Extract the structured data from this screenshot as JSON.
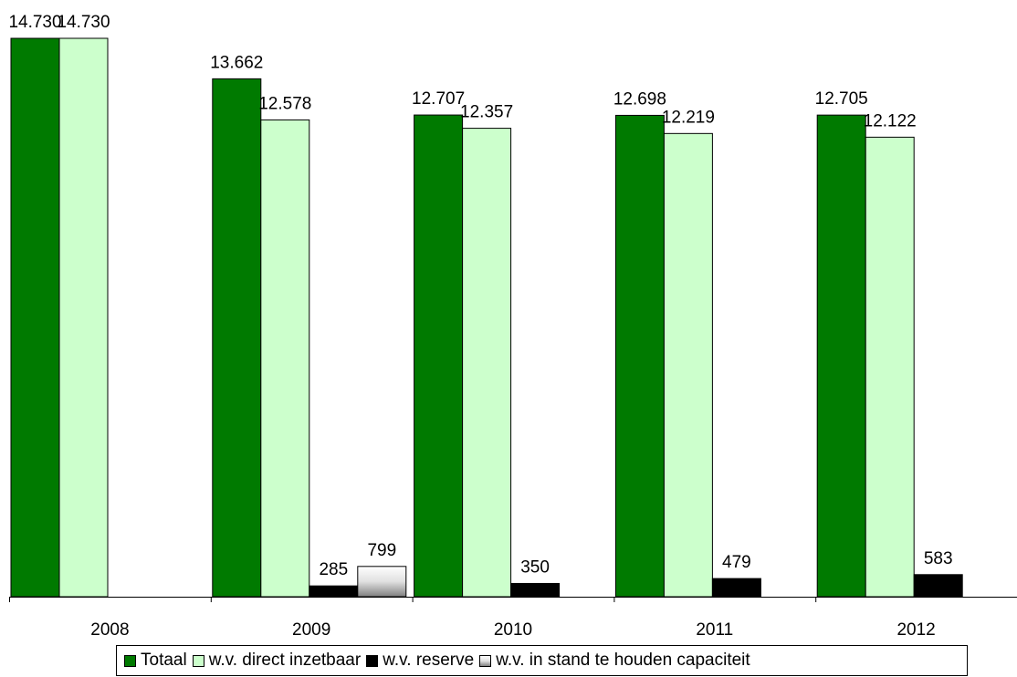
{
  "chart_data": {
    "type": "bar",
    "categories": [
      "2008",
      "2009",
      "2010",
      "2011",
      "2012"
    ],
    "series": [
      {
        "name": "Totaal",
        "color": "#007a00",
        "values": [
          14730,
          13662,
          12707,
          12698,
          12705
        ],
        "labels": [
          "14.730",
          "13.662",
          "12.707",
          "12.698",
          "12.705"
        ]
      },
      {
        "name": "w.v. direct inzetbaar",
        "color": "#ccffcc",
        "values": [
          14730,
          12578,
          12357,
          12219,
          12122
        ],
        "labels": [
          "14.730",
          "12.578",
          "12.357",
          "12.219",
          "12.122"
        ]
      },
      {
        "name": "w.v. reserve",
        "color": "#000000",
        "values": [
          null,
          285,
          350,
          479,
          583
        ],
        "labels": [
          null,
          "285",
          "350",
          "479",
          "583"
        ]
      },
      {
        "name": "w.v. in stand te houden capaciteit",
        "color": "gradient-gray",
        "values": [
          null,
          799,
          null,
          null,
          null
        ],
        "labels": [
          null,
          "799",
          null,
          null,
          null
        ]
      }
    ],
    "ylim": [
      0,
      15000
    ],
    "grid": false,
    "legend_position": "bottom"
  }
}
